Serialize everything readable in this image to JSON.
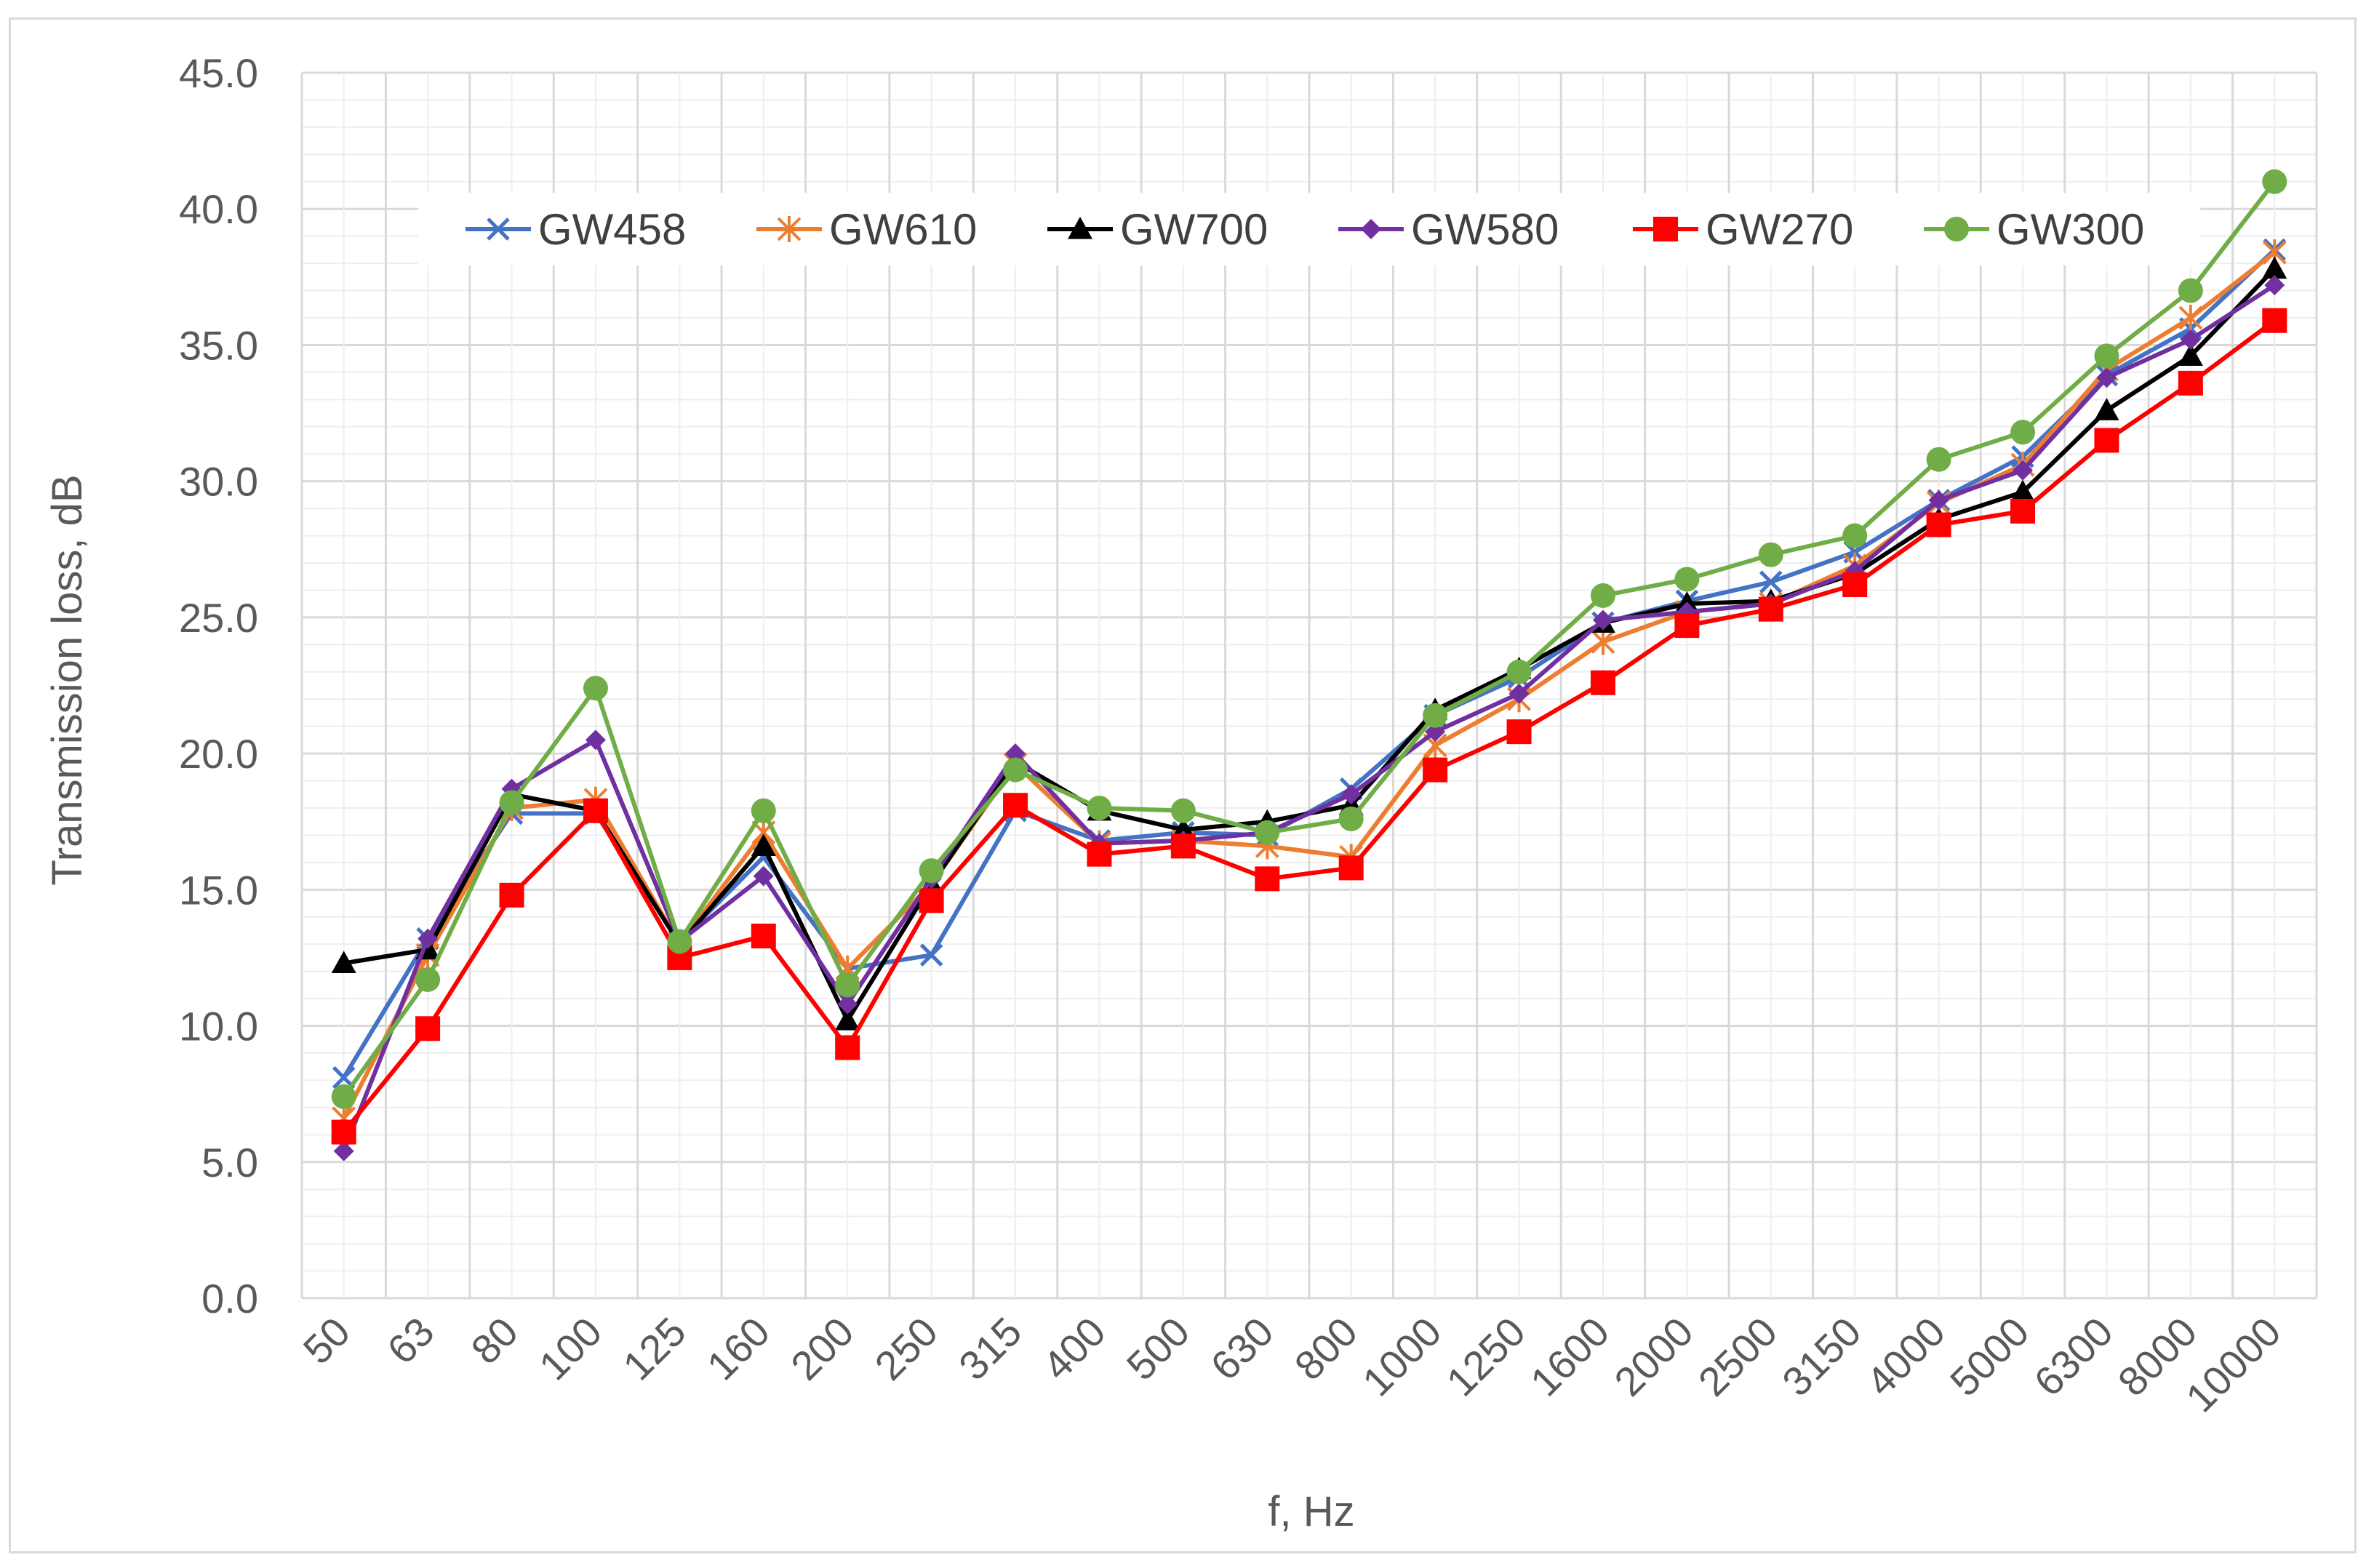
{
  "chart_data": {
    "type": "line",
    "title": "",
    "xlabel": "f, Hz",
    "ylabel": "Transmission loss, dB",
    "ylim": [
      0,
      45
    ],
    "yticks": [
      "0.0",
      "5.0",
      "10.0",
      "15.0",
      "20.0",
      "25.0",
      "30.0",
      "35.0",
      "40.0",
      "45.0"
    ],
    "grid": true,
    "legend_position": "top, inside plot",
    "categories": [
      "50",
      "63",
      "80",
      "100",
      "125",
      "160",
      "200",
      "250",
      "315",
      "400",
      "500",
      "630",
      "800",
      "1000",
      "1250",
      "1600",
      "2000",
      "2500",
      "3150",
      "4000",
      "5000",
      "6300",
      "8000",
      "10000"
    ],
    "series": [
      {
        "name": "GW458",
        "color": "#4472c4",
        "marker": "x-mark",
        "values": [
          8.1,
          13.2,
          17.8,
          17.8,
          13.1,
          16.2,
          12.1,
          12.6,
          17.9,
          16.8,
          17.1,
          17.0,
          18.7,
          21.4,
          22.8,
          24.8,
          25.6,
          26.3,
          27.4,
          29.3,
          30.9,
          33.9,
          35.6,
          38.5
        ]
      },
      {
        "name": "GW610",
        "color": "#ed7d31",
        "marker": "star-mark",
        "values": [
          6.6,
          12.6,
          18.0,
          18.3,
          13.0,
          17.1,
          12.1,
          15.2,
          19.6,
          16.7,
          16.8,
          16.6,
          16.2,
          20.3,
          22.0,
          24.1,
          25.2,
          25.5,
          26.9,
          29.2,
          30.6,
          34.1,
          36.0,
          38.4
        ]
      },
      {
        "name": "GW700",
        "color": "#000000",
        "marker": "triangle-mark",
        "values": [
          12.3,
          12.8,
          18.5,
          17.9,
          13.0,
          16.6,
          10.2,
          15.2,
          19.7,
          17.9,
          17.2,
          17.5,
          18.1,
          21.6,
          23.1,
          24.8,
          25.5,
          25.6,
          26.6,
          28.6,
          29.6,
          32.6,
          34.6,
          37.8
        ]
      },
      {
        "name": "GW580",
        "color": "#7030a0",
        "marker": "diamond-mark",
        "values": [
          5.4,
          13.2,
          18.7,
          20.5,
          13.1,
          15.5,
          10.8,
          15.4,
          20.0,
          16.7,
          16.8,
          17.1,
          18.5,
          20.8,
          22.2,
          24.9,
          25.2,
          25.5,
          26.7,
          29.3,
          30.4,
          33.8,
          35.2,
          37.2
        ]
      },
      {
        "name": "GW270",
        "color": "#ff0000",
        "marker": "square-mark",
        "values": [
          6.1,
          9.9,
          14.8,
          17.9,
          12.5,
          13.3,
          9.2,
          14.6,
          18.1,
          16.3,
          16.6,
          15.4,
          15.8,
          19.4,
          20.8,
          22.6,
          24.7,
          25.3,
          26.2,
          28.4,
          28.9,
          31.5,
          33.6,
          35.9
        ]
      },
      {
        "name": "GW300",
        "color": "#70ad47",
        "marker": "circle-mark",
        "values": [
          7.4,
          11.7,
          18.2,
          22.4,
          13.1,
          17.9,
          11.5,
          15.7,
          19.4,
          18.0,
          17.9,
          17.1,
          17.6,
          21.4,
          23.0,
          25.8,
          26.4,
          27.3,
          28.0,
          30.8,
          31.8,
          34.6,
          37.0,
          41.0
        ]
      }
    ]
  }
}
